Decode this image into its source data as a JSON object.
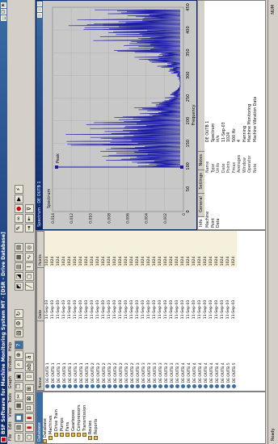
{
  "app": {
    "title": "BSF Software for Machine Monitoring System MT - [DSR - Drive Database]",
    "menu": [
      "File",
      "Edit",
      "View",
      "Tools",
      "Graph",
      "Window",
      "Help"
    ]
  },
  "toolbar1": [
    "new-file",
    "open",
    "save",
    "print",
    "cut",
    "copy",
    "paste",
    "find",
    "zoom",
    "help",
    "browse",
    "options",
    "refresh"
  ],
  "toolbar2": [
    "line",
    "cursor",
    "select",
    "graph",
    "trend",
    "wave",
    "spectrum",
    "text",
    "bold",
    "italic",
    "underline",
    "align",
    "stack"
  ],
  "left_panel": {
    "header": "Database",
    "items": [
      "Database",
      "Machines",
      "Drive Train",
      "Pumps",
      "Fans",
      "Gearboxes",
      "Compressors",
      "Transmission",
      "Routes",
      "Reports"
    ]
  },
  "list": {
    "columns": [
      "Name",
      "Date",
      "Points"
    ],
    "rows": [
      [
        "DE OUTB 1",
        "11-Sep-03",
        "1024"
      ],
      [
        "DE OUTB 1",
        "11-Sep-03",
        "1024"
      ],
      [
        "DE OUTB 1",
        "11-Sep-03",
        "1024"
      ],
      [
        "DE OUTB 1",
        "11-Sep-03",
        "1024"
      ],
      [
        "DE OUTB 1",
        "11-Sep-03",
        "1024"
      ],
      [
        "DE OUTB 1",
        "11-Sep-03",
        "1024"
      ],
      [
        "DE OUTB 1",
        "11-Sep-03",
        "1024"
      ],
      [
        "DE OUTB 1",
        "11-Sep-03",
        "1024"
      ],
      [
        "DE OUTB 2",
        "11-Sep-03",
        "1024"
      ],
      [
        "DE OUTB 2",
        "11-Sep-03",
        "1024"
      ],
      [
        "DE OUTB 2",
        "11-Sep-03",
        "1024"
      ],
      [
        "DE OUTB 2",
        "11-Sep-03",
        "1024"
      ],
      [
        "DE OUTB 2",
        "11-Sep-03",
        "1024"
      ],
      [
        "DE OUTB 2",
        "11-Sep-03",
        "1024"
      ],
      [
        "DE OUTB 2",
        "11-Sep-03",
        "1024"
      ],
      [
        "DE OUTB 2",
        "11-Sep-03",
        "1024"
      ],
      [
        "DE OUTB 3",
        "11-Sep-03",
        "1024"
      ],
      [
        "DE OUTB 3",
        "11-Sep-03",
        "1024"
      ],
      [
        "DE OUTB 3",
        "11-Sep-03",
        "1024"
      ],
      [
        "DE OUTB 3",
        "11-Sep-03",
        "1024"
      ],
      [
        "DE OUTB 3",
        "11-Sep-03",
        "1024"
      ],
      [
        "DE OUTB 3",
        "11-Sep-03",
        "1024"
      ],
      [
        "DE OUTB 3",
        "11-Sep-03",
        "1024"
      ],
      [
        "DE OUTB 3",
        "11-Sep-03",
        "1024"
      ],
      [
        "DE OUTB 4",
        "11-Sep-03",
        "1024"
      ],
      [
        "DE OUTB 4",
        "11-Sep-03",
        "1024"
      ],
      [
        "DE OUTB 4",
        "11-Sep-03",
        "1024"
      ],
      [
        "DE OUTB 4",
        "11-Sep-03",
        "1024"
      ],
      [
        "DE OUTB 4",
        "11-Sep-03",
        "1024"
      ],
      [
        "DE OUTB 4",
        "11-Sep-03",
        "1024"
      ],
      [
        "DE OUTB 4",
        "11-Sep-03",
        "1024"
      ],
      [
        "DE OUTB 4",
        "11-Sep-03",
        "1024"
      ],
      [
        "DE OUTB 5",
        "11-Sep-03",
        "1024"
      ],
      [
        "DE OUTB 5",
        "11-Sep-03",
        "1024"
      ]
    ]
  },
  "graph": {
    "window_title": "Spectrum - DE OUTB 1",
    "subtitle": "Spectrum",
    "xlabel": "Frequency",
    "ylabel": "Amplitude",
    "cursor_label": "Peak",
    "tick_labels_x": [
      "0",
      "50",
      "100",
      "150",
      "200",
      "250",
      "300",
      "350",
      "400",
      "450"
    ],
    "tick_labels_y": [
      "0",
      "0.002",
      "0.004",
      "0.006",
      "0.008",
      "0.010",
      "0.012",
      "0.014"
    ],
    "accent_color": "#1a1aa6",
    "background_color": "#c8c8c8"
  },
  "properties": {
    "tabs": [
      "Info",
      "General",
      "Settings",
      "Notes"
    ],
    "tree": [
      "Machine",
      "Point",
      "Data"
    ],
    "rows": [
      [
        "Name",
        "DE OUTB 1"
      ],
      [
        "Type",
        "Spectrum"
      ],
      [
        "Units",
        "in/s"
      ],
      [
        "Date",
        "11-Sep-03"
      ],
      [
        "Points",
        "1024"
      ],
      [
        "Fmax",
        "500 Hz"
      ],
      [
        "Averages",
        "4"
      ],
      [
        "Window",
        "Hanning"
      ],
      [
        "Operator",
        "Machine Monitoring"
      ],
      [
        "Note",
        "Machine Vibration Data"
      ]
    ]
  },
  "status": [
    "Ready",
    "NUM"
  ]
}
